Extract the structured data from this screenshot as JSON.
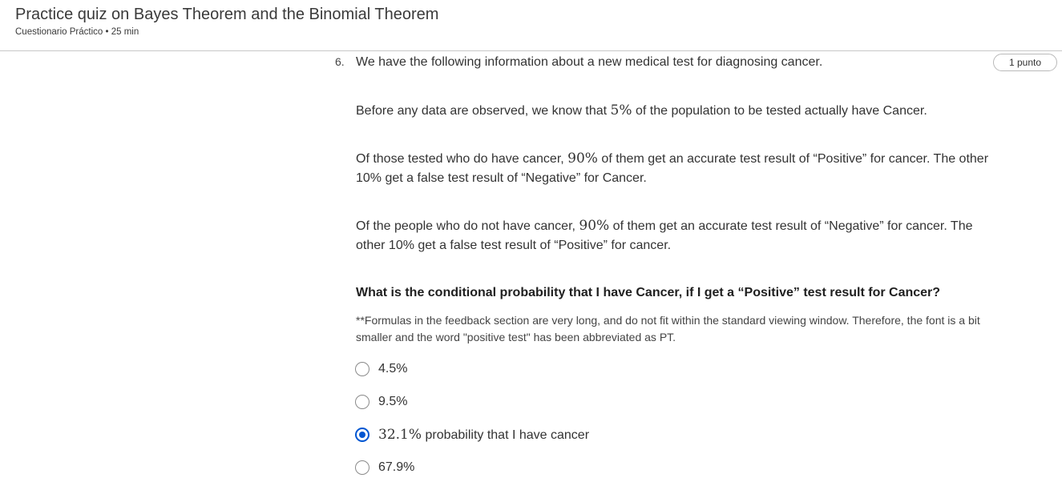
{
  "header": {
    "title": "Practice quiz on Bayes Theorem and the Binomial Theorem",
    "meta": "Cuestionario Práctico • 25 min"
  },
  "question": {
    "number": "6.",
    "points": "1 punto",
    "intro": "We have the following information about a new medical test for diagnosing cancer.",
    "p1_before": "Before any data are observed, we know that ",
    "p1_math": "5%",
    "p1_after": " of the population to be tested actually have Cancer.",
    "p2_before": "Of those tested who do have cancer, ",
    "p2_math": "90%",
    "p2_after": " of them get an accurate test result of “Positive” for cancer. The other 10% get a false test result of “Negative” for Cancer.",
    "p3_before": "Of the people who do not have cancer, ",
    "p3_math": "90%",
    "p3_after": " of them get an accurate test result of “Negative” for cancer. The other 10% get a false test result of “Positive” for cancer.",
    "prompt": "What is the conditional probability that I have Cancer, if I get a “Positive” test result for Cancer?",
    "note": "**Formulas in the feedback section are very long, and do not fit within the standard viewing window. Therefore, the font is a bit smaller and the word \"positive test\" has been abbreviated as PT."
  },
  "options": [
    {
      "label": "4.5%",
      "selected": false
    },
    {
      "label": "9.5%",
      "selected": false
    },
    {
      "math": "32.1%",
      "label": " probability that I have cancer",
      "selected": true
    },
    {
      "label": "67.9%",
      "selected": false
    }
  ],
  "colors": {
    "accent": "#0056d2"
  }
}
